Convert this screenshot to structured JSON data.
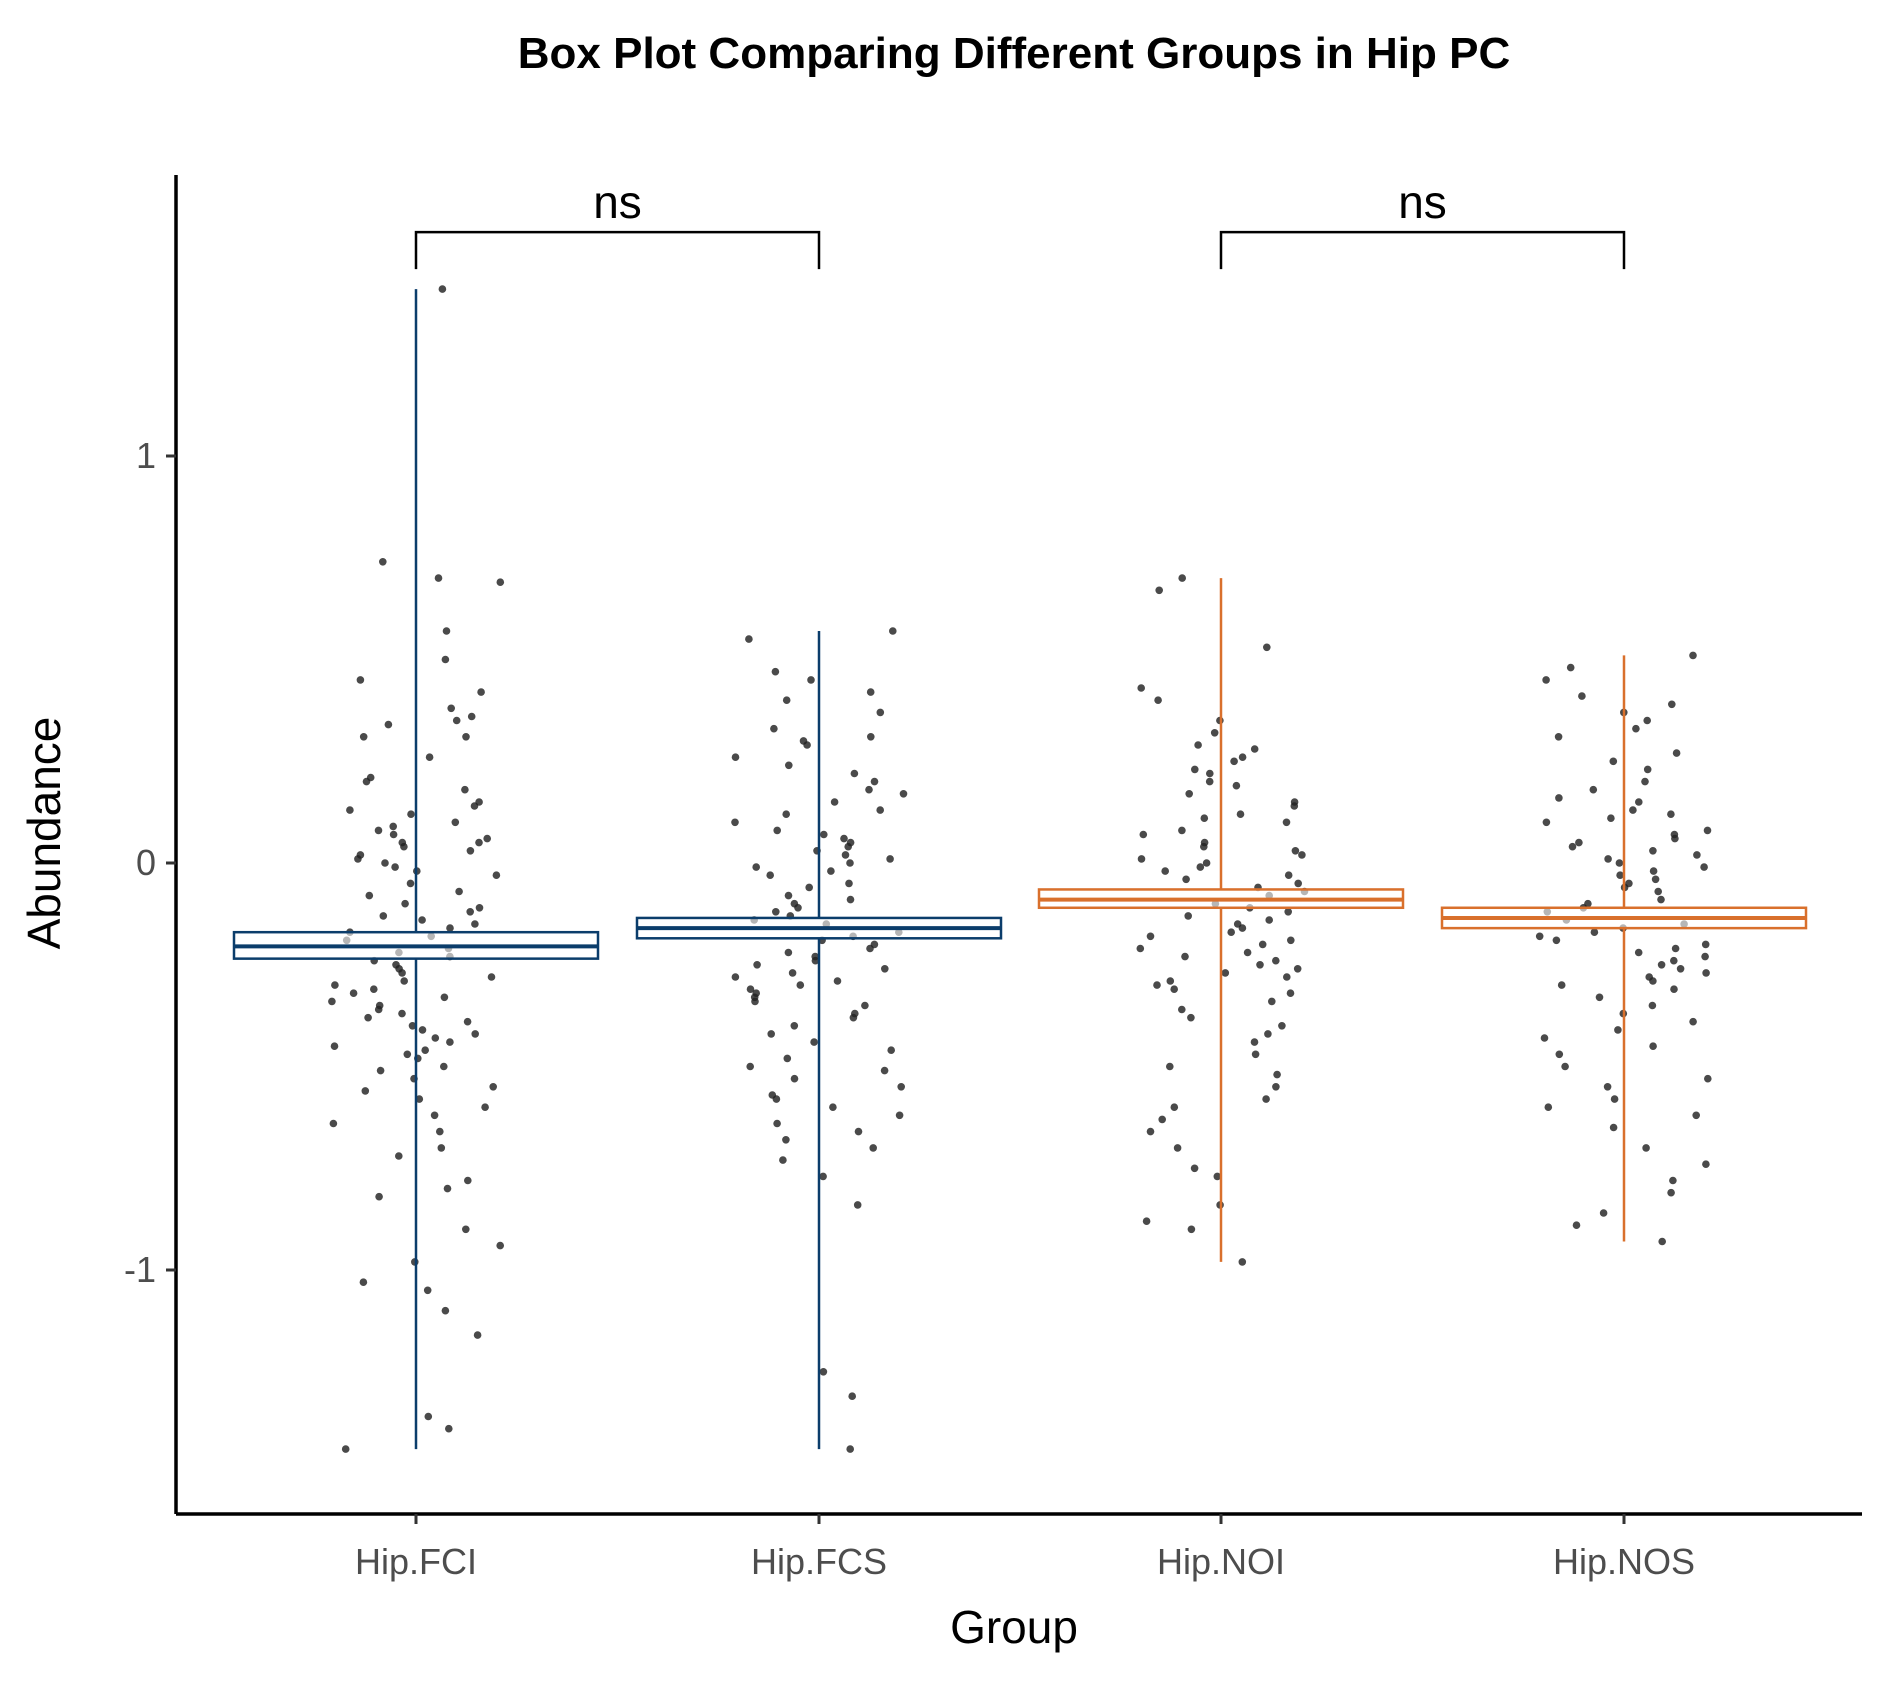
{
  "chart_data": {
    "type": "box",
    "title": "Box Plot Comparing Different Groups in Hip PC",
    "xlabel": "Group",
    "ylabel": "Abundance",
    "ylim": [
      -1.6,
      1.7
    ],
    "yticks": [
      -1,
      0,
      1
    ],
    "ytick_labels": [
      "-1",
      "0",
      "1"
    ],
    "grid": false,
    "legend": "none",
    "categories": [
      "Hip.FCI",
      "Hip.FCS",
      "Hip.NOI",
      "Hip.NOS"
    ],
    "colors": [
      "#0b3d6b",
      "#0b3d6b",
      "#d9702c",
      "#d9702c"
    ],
    "point_color": "#222222",
    "boxes": [
      {
        "group": "Hip.FCI",
        "whisker_low": -1.44,
        "q1": -0.235,
        "median": -0.205,
        "q3": -0.17,
        "whisker_high": 1.41
      },
      {
        "group": "Hip.FCS",
        "whisker_low": -1.44,
        "q1": -0.185,
        "median": -0.16,
        "q3": -0.135,
        "whisker_high": 0.57
      },
      {
        "group": "Hip.NOI",
        "whisker_low": -0.98,
        "q1": -0.11,
        "median": -0.09,
        "q3": -0.065,
        "whisker_high": 0.7
      },
      {
        "group": "Hip.NOS",
        "whisker_low": -0.93,
        "q1": -0.16,
        "median": -0.135,
        "q3": -0.11,
        "whisker_high": 0.51
      }
    ],
    "points": [
      {
        "group": "Hip.FCI",
        "values": [
          1.41,
          0.74,
          0.7,
          0.69,
          0.57,
          0.5,
          0.45,
          0.42,
          0.38,
          0.36,
          0.35,
          0.34,
          0.31,
          0.31,
          0.26,
          0.21,
          0.2,
          0.18,
          0.15,
          0.14,
          0.13,
          0.12,
          0.1,
          0.09,
          0.08,
          0.07,
          0.06,
          0.05,
          0.05,
          0.04,
          0.03,
          0.02,
          0.01,
          0.0,
          -0.01,
          -0.02,
          -0.03,
          -0.05,
          -0.07,
          -0.08,
          -0.1,
          -0.11,
          -0.12,
          -0.13,
          -0.14,
          -0.15,
          -0.16,
          -0.17,
          -0.18,
          -0.19,
          -0.21,
          -0.22,
          -0.23,
          -0.24,
          -0.25,
          -0.26,
          -0.27,
          -0.28,
          -0.29,
          -0.3,
          -0.31,
          -0.32,
          -0.33,
          -0.34,
          -0.35,
          -0.36,
          -0.37,
          -0.38,
          -0.39,
          -0.4,
          -0.41,
          -0.42,
          -0.43,
          -0.44,
          -0.45,
          -0.46,
          -0.47,
          -0.48,
          -0.5,
          -0.51,
          -0.53,
          -0.55,
          -0.56,
          -0.58,
          -0.6,
          -0.62,
          -0.64,
          -0.66,
          -0.7,
          -0.72,
          -0.78,
          -0.8,
          -0.82,
          -0.9,
          -0.94,
          -0.98,
          -1.03,
          -1.05,
          -1.1,
          -1.16,
          -1.36,
          -1.39,
          -1.44
        ]
      },
      {
        "group": "Hip.FCS",
        "values": [
          0.57,
          0.55,
          0.47,
          0.45,
          0.42,
          0.4,
          0.37,
          0.33,
          0.31,
          0.3,
          0.29,
          0.26,
          0.24,
          0.22,
          0.2,
          0.18,
          0.17,
          0.15,
          0.13,
          0.12,
          0.1,
          0.08,
          0.07,
          0.06,
          0.05,
          0.04,
          0.03,
          0.02,
          0.01,
          0.0,
          -0.01,
          -0.02,
          -0.03,
          -0.05,
          -0.06,
          -0.08,
          -0.09,
          -0.1,
          -0.11,
          -0.12,
          -0.13,
          -0.14,
          -0.15,
          -0.17,
          -0.18,
          -0.19,
          -0.2,
          -0.21,
          -0.22,
          -0.23,
          -0.24,
          -0.25,
          -0.26,
          -0.27,
          -0.28,
          -0.29,
          -0.3,
          -0.31,
          -0.32,
          -0.33,
          -0.34,
          -0.35,
          -0.37,
          -0.38,
          -0.4,
          -0.42,
          -0.44,
          -0.46,
          -0.48,
          -0.5,
          -0.51,
          -0.53,
          -0.55,
          -0.57,
          -0.58,
          -0.6,
          -0.62,
          -0.64,
          -0.66,
          -0.68,
          -0.7,
          -0.73,
          -0.77,
          -0.84,
          -1.25,
          -1.31,
          -1.44
        ]
      },
      {
        "group": "Hip.NOI",
        "values": [
          0.7,
          0.67,
          0.53,
          0.43,
          0.4,
          0.35,
          0.32,
          0.29,
          0.28,
          0.26,
          0.25,
          0.23,
          0.22,
          0.2,
          0.19,
          0.17,
          0.15,
          0.14,
          0.12,
          0.11,
          0.1,
          0.08,
          0.07,
          0.05,
          0.04,
          0.03,
          0.02,
          0.01,
          0.0,
          -0.01,
          -0.02,
          -0.03,
          -0.04,
          -0.05,
          -0.06,
          -0.07,
          -0.08,
          -0.1,
          -0.11,
          -0.12,
          -0.13,
          -0.14,
          -0.15,
          -0.16,
          -0.17,
          -0.18,
          -0.19,
          -0.2,
          -0.21,
          -0.22,
          -0.23,
          -0.24,
          -0.25,
          -0.26,
          -0.27,
          -0.28,
          -0.29,
          -0.3,
          -0.31,
          -0.32,
          -0.34,
          -0.36,
          -0.38,
          -0.4,
          -0.42,
          -0.44,
          -0.47,
          -0.5,
          -0.52,
          -0.55,
          -0.58,
          -0.6,
          -0.63,
          -0.66,
          -0.7,
          -0.75,
          -0.77,
          -0.84,
          -0.88,
          -0.9,
          -0.98
        ]
      },
      {
        "group": "Hip.NOS",
        "values": [
          0.51,
          0.48,
          0.45,
          0.41,
          0.39,
          0.37,
          0.35,
          0.33,
          0.31,
          0.27,
          0.25,
          0.23,
          0.2,
          0.18,
          0.16,
          0.15,
          0.13,
          0.12,
          0.11,
          0.1,
          0.08,
          0.07,
          0.06,
          0.05,
          0.04,
          0.03,
          0.02,
          0.01,
          0.0,
          -0.01,
          -0.02,
          -0.03,
          -0.04,
          -0.05,
          -0.06,
          -0.07,
          -0.09,
          -0.1,
          -0.11,
          -0.12,
          -0.14,
          -0.15,
          -0.16,
          -0.17,
          -0.18,
          -0.19,
          -0.2,
          -0.21,
          -0.22,
          -0.23,
          -0.24,
          -0.25,
          -0.26,
          -0.27,
          -0.28,
          -0.29,
          -0.3,
          -0.31,
          -0.33,
          -0.35,
          -0.37,
          -0.39,
          -0.41,
          -0.43,
          -0.45,
          -0.47,
          -0.5,
          -0.53,
          -0.55,
          -0.58,
          -0.6,
          -0.62,
          -0.65,
          -0.7,
          -0.74,
          -0.78,
          -0.81,
          -0.86,
          -0.89,
          -0.93
        ]
      }
    ],
    "comparisons": [
      {
        "group1": "Hip.FCI",
        "group2": "Hip.FCS",
        "label": "ns",
        "y": 1.55
      },
      {
        "group1": "Hip.NOI",
        "group2": "Hip.NOS",
        "label": "ns",
        "y": 1.55
      }
    ]
  }
}
